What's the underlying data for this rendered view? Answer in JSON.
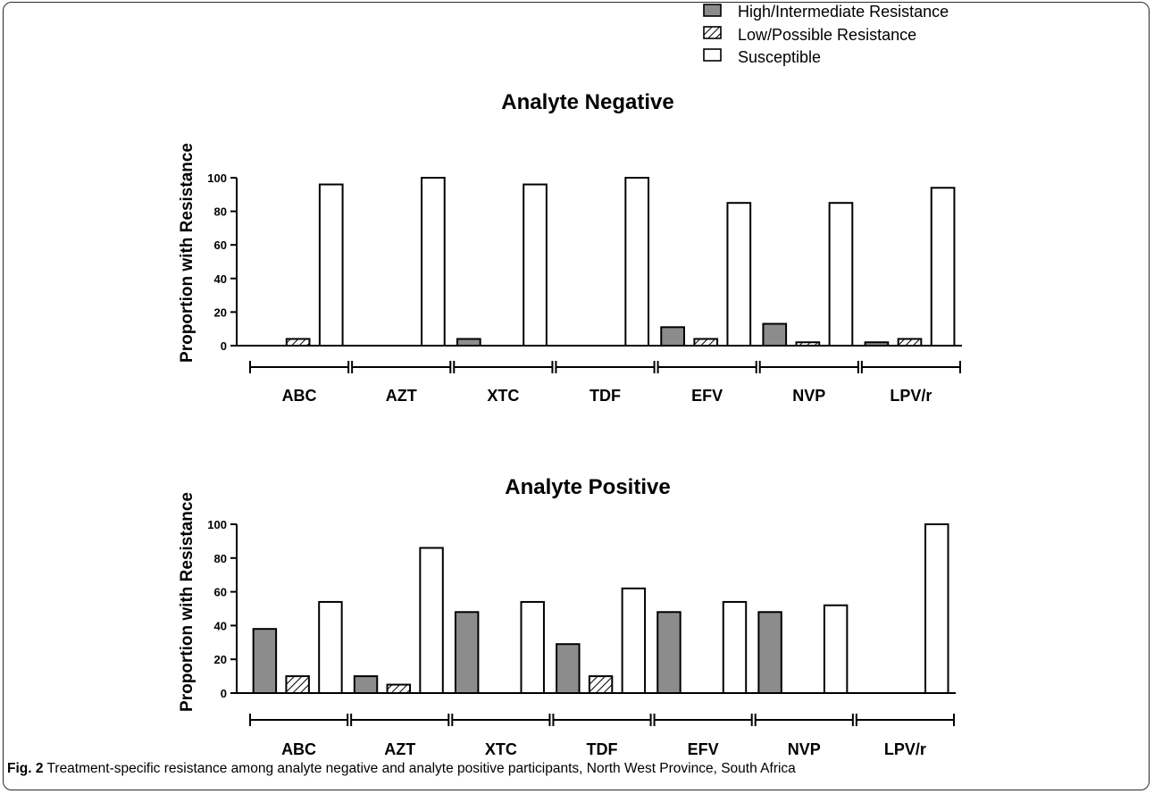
{
  "caption": {
    "lead": "Fig. 2",
    "text": " Treatment-specific resistance among analyte negative and analyte positive participants, North West Province, South Africa"
  },
  "legend": [
    {
      "name": "High/Intermediate Resistance",
      "style": "solid",
      "color": "#8c8c8c"
    },
    {
      "name": "Low/Possible Resistance",
      "style": "hatched",
      "color": "#ffffff"
    },
    {
      "name": "Susceptible",
      "style": "empty",
      "color": "#ffffff"
    }
  ],
  "chart_data": [
    {
      "type": "bar",
      "title": "Analyte Negative",
      "ylabel": "Proportion with  Resistance",
      "xlabel": "",
      "ylim": [
        0,
        100
      ],
      "yticks": [
        0,
        20,
        40,
        60,
        80,
        100
      ],
      "categories": [
        "ABC",
        "AZT",
        "XTC",
        "TDF",
        "EFV",
        "NVP",
        "LPV/r"
      ],
      "series": [
        {
          "name": "High/Intermediate Resistance",
          "values": [
            0,
            0,
            4,
            0,
            11,
            13,
            2
          ]
        },
        {
          "name": "Low/Possible Resistance",
          "values": [
            4,
            0,
            0,
            0,
            4,
            2,
            4
          ]
        },
        {
          "name": "Susceptible",
          "values": [
            96,
            100,
            96,
            100,
            85,
            85,
            94
          ]
        }
      ]
    },
    {
      "type": "bar",
      "title": "Analyte Positive",
      "ylabel": "Proportion with  Resistance",
      "xlabel": "",
      "ylim": [
        0,
        100
      ],
      "yticks": [
        0,
        20,
        40,
        60,
        80,
        100
      ],
      "categories": [
        "ABC",
        "AZT",
        "XTC",
        "TDF",
        "EFV",
        "NVP",
        "LPV/r"
      ],
      "series": [
        {
          "name": "High/Intermediate Resistance",
          "values": [
            38,
            10,
            48,
            29,
            48,
            48,
            0
          ]
        },
        {
          "name": "Low/Possible Resistance",
          "values": [
            10,
            5,
            0,
            10,
            0,
            0,
            0
          ]
        },
        {
          "name": "Susceptible",
          "values": [
            54,
            86,
            54,
            62,
            54,
            52,
            100
          ]
        }
      ]
    }
  ]
}
